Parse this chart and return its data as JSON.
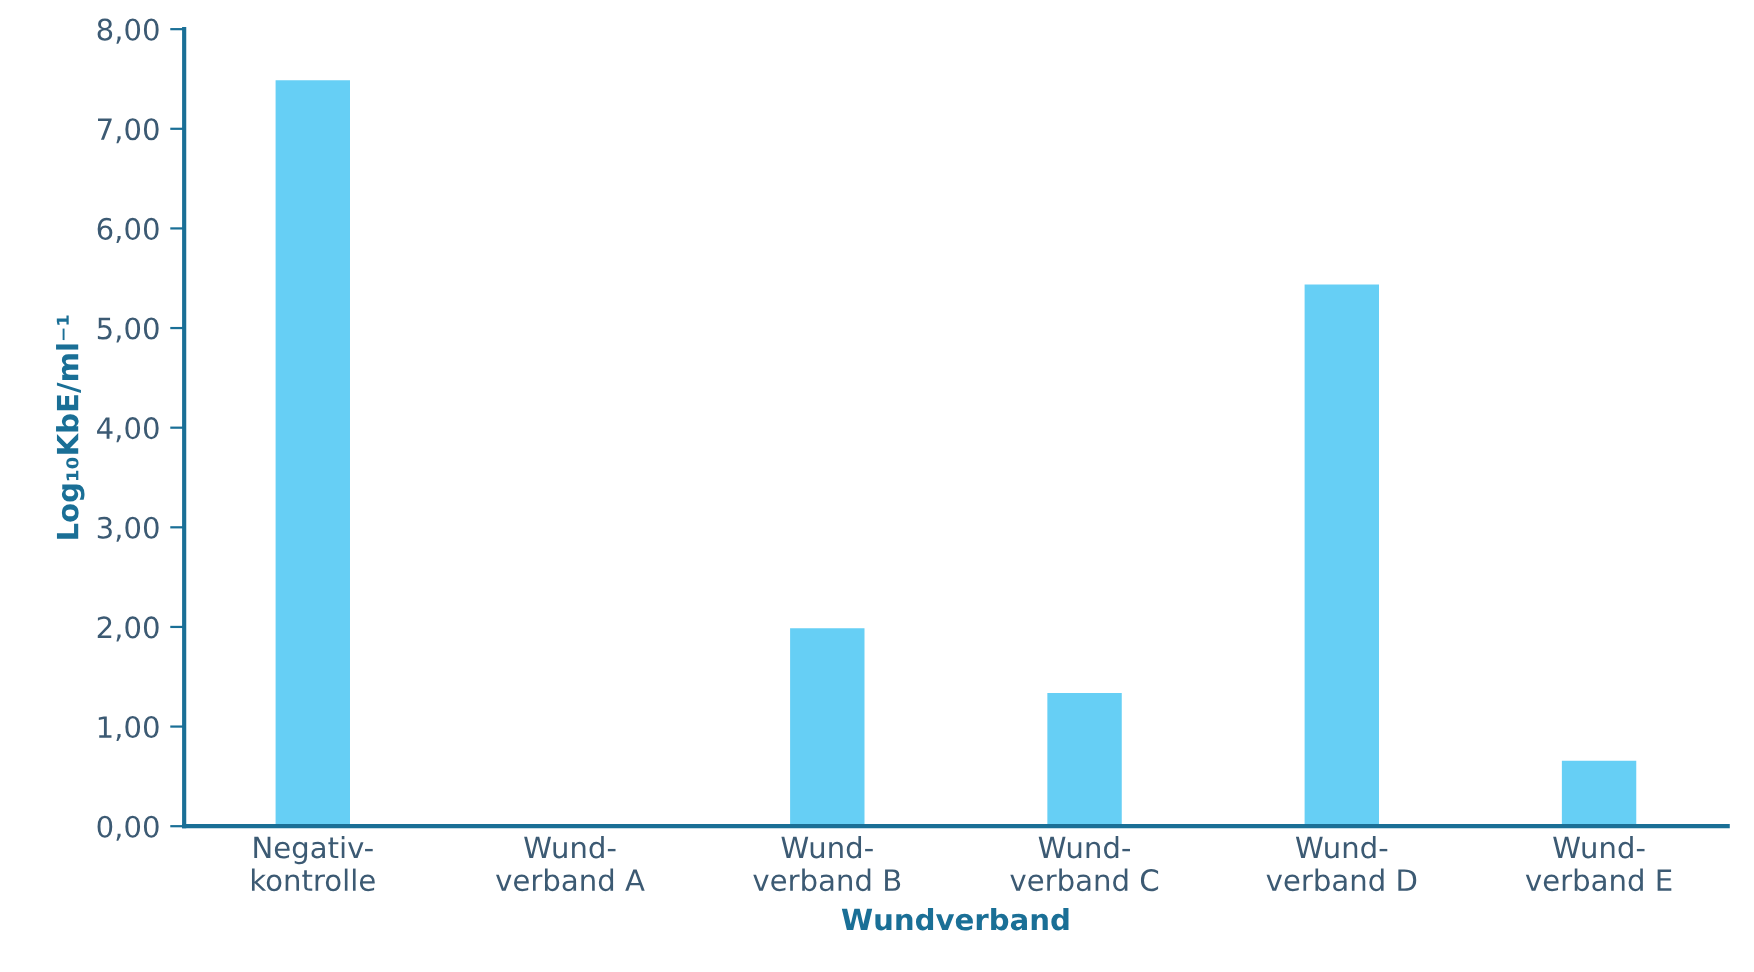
{
  "chart_data": {
    "type": "bar",
    "xlabel": "Wundverband",
    "ylabel": "Log₁₀KbE/ml⁻¹",
    "categories": [
      "Negativ-\nkontrolle",
      "Wund-\nverband A",
      "Wund-\nverband B",
      "Wund-\nverband C",
      "Wund-\nverband D",
      "Wund-\nverband E"
    ],
    "values": [
      7.5,
      null,
      2.0,
      1.35,
      5.45,
      0.67
    ],
    "color": "#66cff5",
    "ylim": [
      0,
      8
    ],
    "yticks": [
      {
        "value": 0,
        "label": "0,00"
      },
      {
        "value": 1,
        "label": "1,00"
      },
      {
        "value": 2,
        "label": "2,00"
      },
      {
        "value": 3,
        "label": "3,00"
      },
      {
        "value": 4,
        "label": "4,00"
      },
      {
        "value": 5,
        "label": "5,00"
      },
      {
        "value": 6,
        "label": "6,00"
      },
      {
        "value": 7,
        "label": "7,00"
      },
      {
        "value": 8,
        "label": "8,00"
      }
    ],
    "grid": false,
    "legend": false
  }
}
